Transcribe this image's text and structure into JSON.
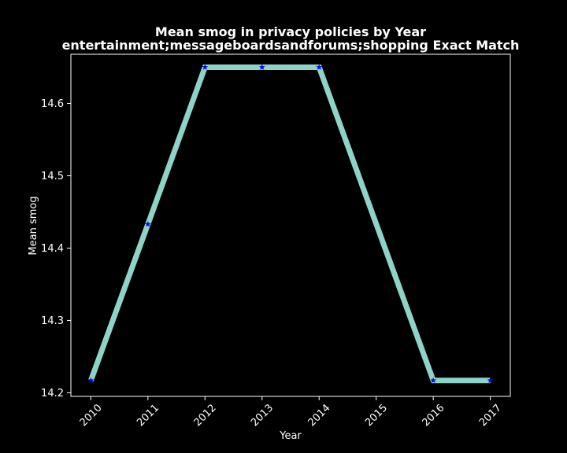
{
  "chart_data": {
    "type": "line",
    "title_line1": "Mean smog in privacy policies by Year",
    "title_line2": "entertainment;messageboardsandforums;shopping Exact Match",
    "xlabel": "Year",
    "ylabel": "Mean smog",
    "x_ticks": [
      "2010",
      "2011",
      "2012",
      "2013",
      "2014",
      "2015",
      "2016",
      "2017"
    ],
    "y_ticks": [
      "14.2",
      "14.3",
      "14.4",
      "14.5",
      "14.6"
    ],
    "xlim": [
      2009.65,
      2017.35
    ],
    "ylim": [
      14.195,
      14.668
    ],
    "grid": false,
    "legend": "none",
    "series": [
      {
        "x": [
          2010,
          2011,
          2012,
          2013,
          2014,
          2016,
          2017
        ],
        "y": [
          14.217,
          14.433,
          14.65,
          14.65,
          14.65,
          14.217,
          14.217
        ],
        "line_color": "#8dd3c7",
        "marker": "star",
        "marker_color": "#0000ff"
      }
    ],
    "colors": {
      "background": "#000000",
      "axes": "#ffffff",
      "text": "#ffffff"
    }
  }
}
